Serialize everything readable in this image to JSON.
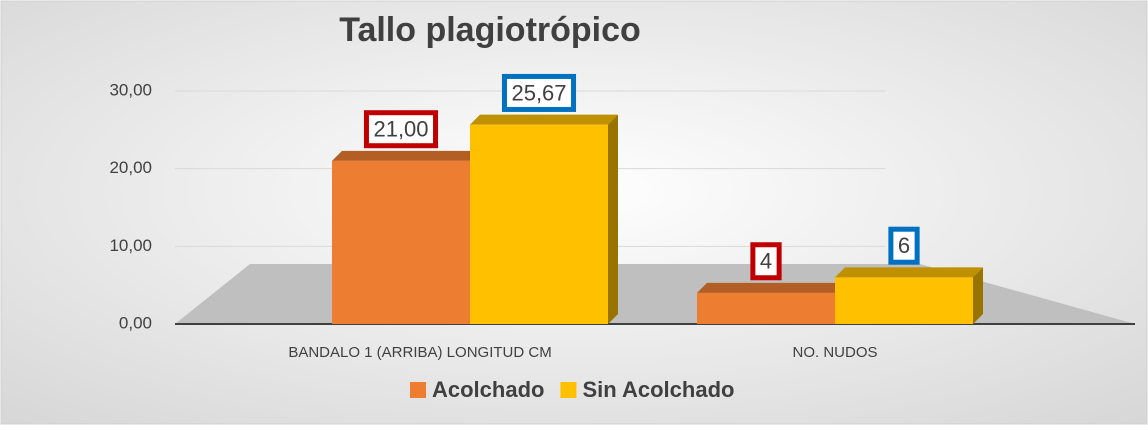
{
  "chart_data": {
    "type": "bar3d",
    "title": "Tallo plagiotrópico",
    "categories": [
      "BANDALO 1 (ARRIBA) LONGITUD CM",
      "NO. NUDOS"
    ],
    "series": [
      {
        "name": "Acolchado",
        "color": "#ed7d31",
        "label_border": "#c00000",
        "values": [
          21,
          4
        ],
        "value_labels": [
          "21,00",
          "4"
        ]
      },
      {
        "name": "Sin Acolchado",
        "color": "#ffc000",
        "label_border": "#0070c0",
        "values": [
          25.67,
          6
        ],
        "value_labels": [
          "25,67",
          "6"
        ]
      }
    ],
    "ylim": [
      0,
      30
    ],
    "yticks": [
      {
        "value": 0,
        "label": "0,00"
      },
      {
        "value": 10,
        "label": "10,00"
      },
      {
        "value": 20,
        "label": "20,00"
      },
      {
        "value": 30,
        "label": "30,00"
      }
    ],
    "grid": true,
    "legend": "bottom"
  }
}
